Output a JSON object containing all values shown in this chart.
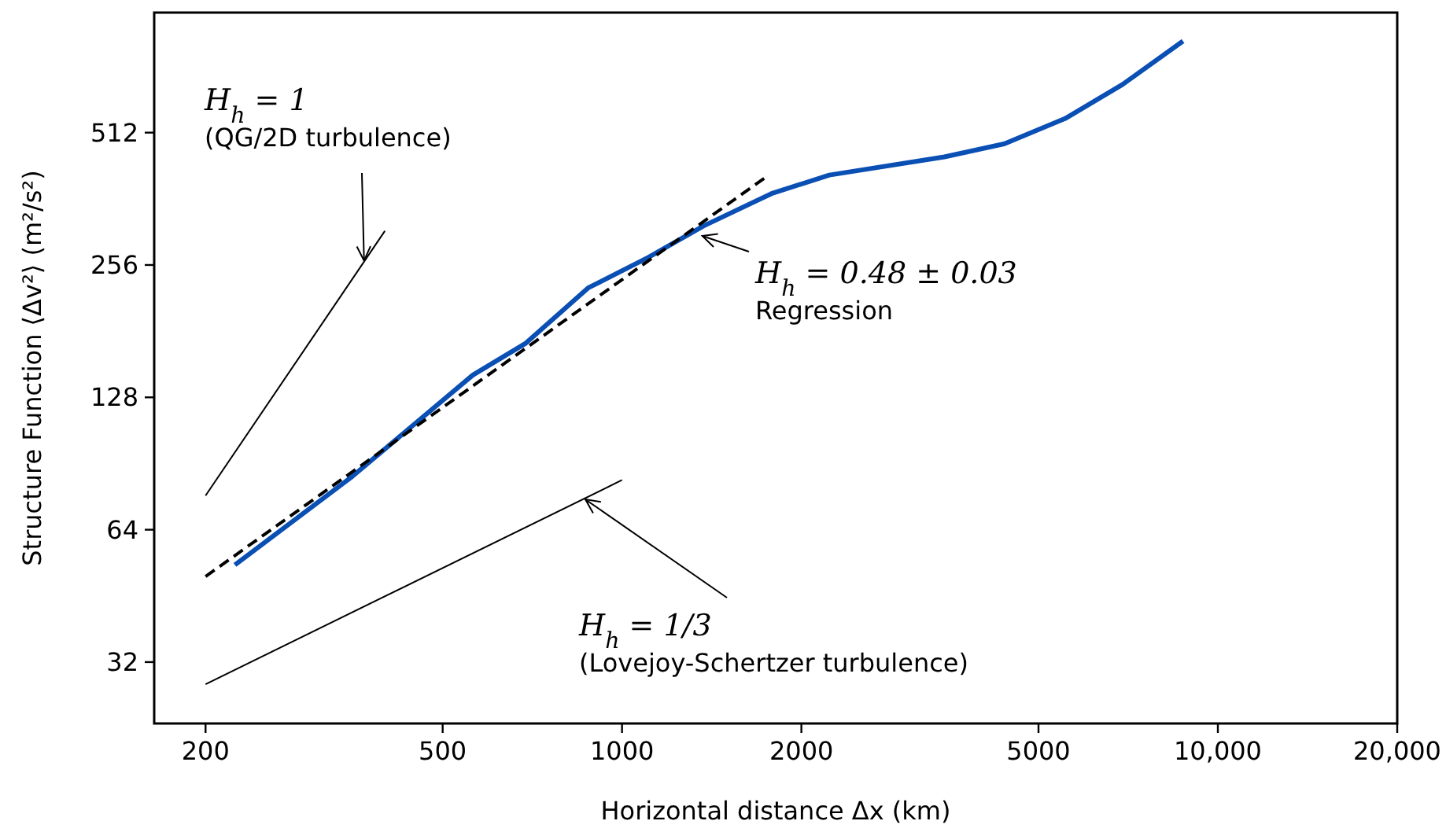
{
  "chart_data": {
    "type": "line",
    "xlabel": "Horizontal distance Δx (km)",
    "ylabel": "Structure Function ⟨Δv²⟩ (m²/s²)",
    "log": "xy",
    "xlim": [
      164,
      20000
    ],
    "ylim": [
      23.2,
      960
    ],
    "xticks": [
      200,
      500,
      1000,
      2000,
      5000,
      {
        "value": 10000,
        "label": "10,000"
      },
      {
        "value": 20000,
        "label": "20,000"
      }
    ],
    "yticks": [
      32,
      64,
      128,
      256,
      512
    ],
    "grid": false,
    "series": [
      {
        "color": "#0a4fb4",
        "line_style": "solid",
        "x": [
          224,
          353,
          562,
          688,
          877,
          1108,
          1370,
          1782,
          2228,
          3476,
          4386,
          5540,
          6920,
          8740
        ],
        "values": [
          53.2,
          84.7,
          143.9,
          169.6,
          227,
          266.6,
          314,
          372,
          410,
          451,
          483,
          551,
          659,
          827
        ]
      },
      {
        "color": "#000000",
        "line_style": "dashed",
        "x": [
          200,
          1763
        ],
        "values": [
          50.1,
          410
        ]
      },
      {
        "color": "#000000",
        "line_style": "solid",
        "x": [
          200,
          400
        ],
        "values": [
          76.5,
          306
        ]
      },
      {
        "color": "#000000",
        "line_style": "solid",
        "x": [
          200,
          1000
        ],
        "values": [
          28.5,
          83
        ]
      }
    ],
    "annotations": [
      {
        "text": "H$_{h}$ = 1\n(QG/2D turbulence)",
        "x": 369,
        "y": 262
      },
      {
        "text": "H$_{h}$ = 0.48 ± 0.03\nRegression",
        "x": 1364,
        "y": 298
      },
      {
        "text": "H$_{h}$ = 1/3\n(Lovejoy-Schertzer turbulence)",
        "x": 868,
        "y": 75
      }
    ]
  }
}
